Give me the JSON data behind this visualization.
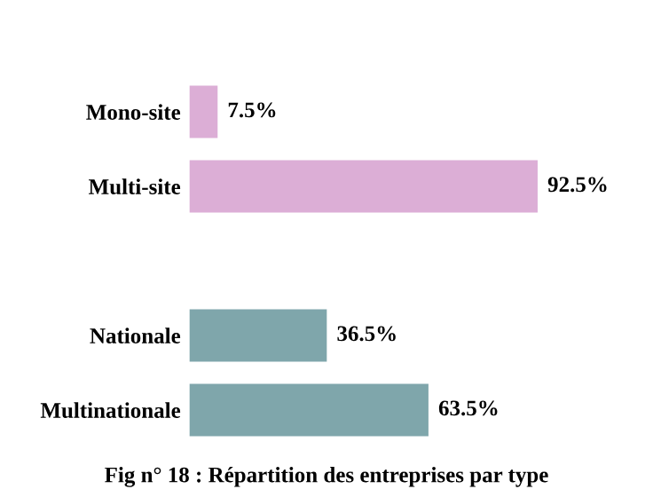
{
  "chart_data": {
    "type": "bar",
    "orientation": "horizontal",
    "title": "Fig n° 18 : Répartition des entreprises par type",
    "categories": [
      "Mono-site",
      "Multi-site",
      null,
      "Nationale",
      "Multinationale"
    ],
    "values": [
      7.5,
      92.5,
      null,
      36.5,
      63.5
    ],
    "value_labels": [
      "7.5%",
      "92.5%",
      null,
      "36.5%",
      "63.5%"
    ],
    "colors": [
      "#dcaed6",
      "#dcaed6",
      "#ffffff",
      "#7fa6ab",
      "#7fa6ab"
    ],
    "tick_labels": "y",
    "grid": false,
    "legend": false
  }
}
